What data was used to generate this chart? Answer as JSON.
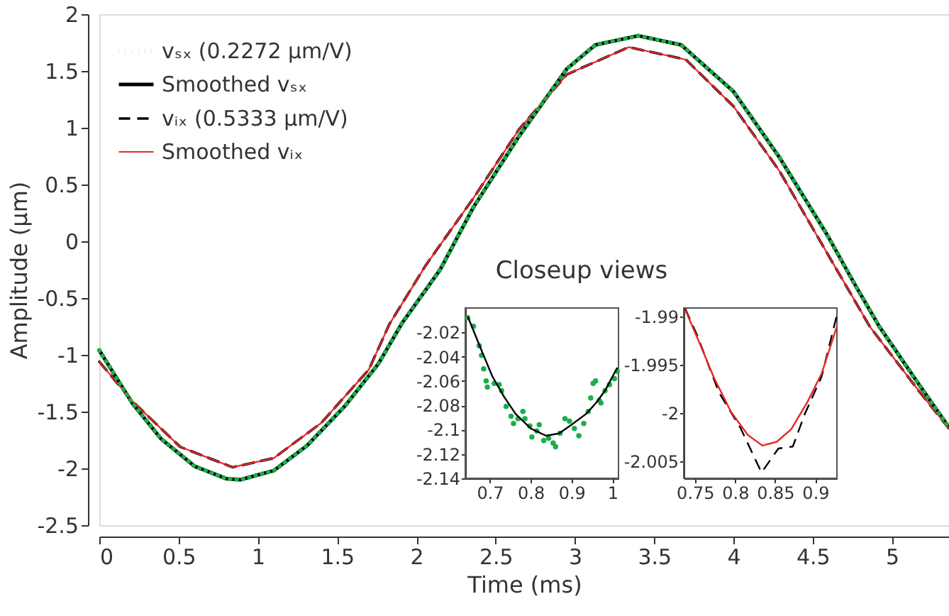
{
  "chart_data": [
    {
      "type": "line",
      "xlabel": "Time (ms)",
      "ylabel": "Amplitude (µm)",
      "xlim": [
        0,
        5.36
      ],
      "ylim": [
        -2.5,
        2
      ],
      "xticks": [
        0,
        0.5,
        1,
        1.5,
        2,
        2.5,
        3,
        3.5,
        4,
        4.5,
        5
      ],
      "yticks": [
        -2.5,
        -2,
        -1.5,
        -1,
        -0.5,
        0,
        0.5,
        1,
        1.5,
        2
      ],
      "grid": false,
      "legend": "top left",
      "annotations": [
        "Closeup views"
      ],
      "series": [
        {
          "name": "vₛₓ (0.2272 µm/V)",
          "color": "#1aae4a",
          "line_style": "dotted",
          "x": [
            0,
            0.21,
            0.39,
            0.6,
            0.8,
            0.89,
            1.1,
            1.31,
            1.55,
            1.76,
            1.91,
            2.15,
            2.36,
            2.65,
            2.95,
            3.13,
            3.4,
            3.67,
            4.0,
            4.29,
            4.59,
            4.77,
            4.92,
            5.16,
            5.36
          ],
          "values": [
            -0.96,
            -1.43,
            -1.74,
            -1.98,
            -2.09,
            -2.1,
            -2.02,
            -1.8,
            -1.45,
            -1.08,
            -0.72,
            -0.25,
            0.3,
            0.93,
            1.52,
            1.73,
            1.81,
            1.73,
            1.32,
            0.74,
            0.06,
            -0.39,
            -0.75,
            -1.24,
            -1.64
          ]
        },
        {
          "name": "Smoothed vₛₓ",
          "color": "#000000",
          "line_style": "solid",
          "x": [
            0,
            0.21,
            0.39,
            0.6,
            0.8,
            0.89,
            1.1,
            1.31,
            1.55,
            1.76,
            1.91,
            2.15,
            2.36,
            2.65,
            2.95,
            3.13,
            3.4,
            3.67,
            4.0,
            4.29,
            4.59,
            4.77,
            4.92,
            5.16,
            5.36
          ],
          "values": [
            -0.96,
            -1.43,
            -1.74,
            -1.98,
            -2.09,
            -2.1,
            -2.02,
            -1.8,
            -1.45,
            -1.08,
            -0.72,
            -0.25,
            0.3,
            0.93,
            1.52,
            1.73,
            1.81,
            1.73,
            1.32,
            0.74,
            0.06,
            -0.39,
            -0.75,
            -1.24,
            -1.64
          ]
        },
        {
          "name": "vᵢₓ (0.5333 µm/V)",
          "color": "#000000",
          "line_style": "dashed",
          "x": [
            0,
            0.21,
            0.51,
            0.84,
            1.1,
            1.4,
            1.7,
            1.83,
            2.06,
            2.36,
            2.65,
            2.95,
            3.34,
            3.7,
            4.0,
            4.29,
            4.71,
            4.86,
            5.16,
            5.36
          ],
          "values": [
            -1.06,
            -1.41,
            -1.81,
            -1.99,
            -1.91,
            -1.6,
            -1.13,
            -0.73,
            -0.21,
            0.38,
            0.99,
            1.47,
            1.71,
            1.6,
            1.19,
            0.62,
            -0.39,
            -0.75,
            -1.3,
            -1.65
          ]
        },
        {
          "name": "Smoothed vᵢₓ",
          "color": "#e8262b",
          "line_style": "solid",
          "x": [
            0,
            0.21,
            0.51,
            0.84,
            1.1,
            1.4,
            1.7,
            1.83,
            2.06,
            2.36,
            2.65,
            2.95,
            3.34,
            3.7,
            4.0,
            4.29,
            4.71,
            4.86,
            5.16,
            5.36
          ],
          "values": [
            -1.06,
            -1.41,
            -1.81,
            -1.99,
            -1.91,
            -1.6,
            -1.13,
            -0.73,
            -0.21,
            0.38,
            0.99,
            1.47,
            1.71,
            1.6,
            1.19,
            0.62,
            -0.39,
            -0.75,
            -1.3,
            -1.65
          ]
        }
      ]
    },
    {
      "type": "line",
      "xlim": [
        0.64,
        1.015
      ],
      "ylim": [
        -2.14,
        -2.0
      ],
      "xticks": [
        0.7,
        0.8,
        0.9,
        1
      ],
      "yticks": [
        -2.14,
        -2.12,
        -2.1,
        -2.08,
        -2.06,
        -2.04,
        -2.02
      ],
      "grid": false,
      "series": [
        {
          "type": "scatter",
          "marker": "circle",
          "color": "#1aae4a",
          "x": [
            0.646,
            0.66,
            0.674,
            0.68,
            0.685,
            0.691,
            0.694,
            0.711,
            0.723,
            0.729,
            0.74,
            0.752,
            0.758,
            0.769,
            0.781,
            0.786,
            0.798,
            0.803,
            0.815,
            0.821,
            0.832,
            0.844,
            0.855,
            0.861,
            0.872,
            0.884,
            0.895,
            0.907,
            0.918,
            0.93,
            0.941,
            0.947,
            0.953,
            0.959,
            0.968,
            0.972,
            0.982,
            0.993,
            1.005,
            1.012
          ],
          "values": [
            -2.008,
            -2.015,
            -2.031,
            -2.039,
            -2.05,
            -2.06,
            -2.065,
            -2.062,
            -2.063,
            -2.068,
            -2.081,
            -2.089,
            -2.095,
            -2.091,
            -2.085,
            -2.091,
            -2.097,
            -2.106,
            -2.101,
            -2.096,
            -2.109,
            -2.107,
            -2.111,
            -2.114,
            -2.103,
            -2.091,
            -2.093,
            -2.099,
            -2.105,
            -2.095,
            -2.085,
            -2.074,
            -2.062,
            -2.06,
            -2.076,
            -2.078,
            -2.068,
            -2.063,
            -2.058,
            -2.052
          ]
        },
        {
          "type": "line",
          "color": "#000000",
          "line_style": "solid",
          "x": [
            0.646,
            0.68,
            0.706,
            0.735,
            0.763,
            0.8,
            0.838,
            0.87,
            0.9,
            0.936,
            0.96,
            0.982,
            1.012
          ],
          "values": [
            -2.007,
            -2.035,
            -2.056,
            -2.073,
            -2.087,
            -2.099,
            -2.105,
            -2.103,
            -2.096,
            -2.087,
            -2.078,
            -2.068,
            -2.049
          ]
        }
      ]
    },
    {
      "type": "line",
      "xlim": [
        0.736,
        0.927
      ],
      "ylim": [
        -2.0068,
        -1.9891
      ],
      "xticks": [
        0.75,
        0.8,
        0.85,
        0.9
      ],
      "yticks": [
        -2.005,
        -2,
        -1.995,
        -1.99
      ],
      "grid": false,
      "series": [
        {
          "color": "#000000",
          "line_style": "dashed",
          "x": [
            0.738,
            0.753,
            0.78,
            0.807,
            0.833,
            0.854,
            0.872,
            0.887,
            0.908,
            0.927
          ],
          "values": [
            -1.9892,
            -1.992,
            -1.9979,
            -2.0016,
            -2.0062,
            -2.0037,
            -2.0035,
            -2.0001,
            -1.9962,
            -1.9898
          ]
        },
        {
          "color": "#e8262b",
          "line_style": "solid",
          "x": [
            0.738,
            0.756,
            0.774,
            0.795,
            0.816,
            0.834,
            0.852,
            0.87,
            0.89,
            0.908,
            0.927
          ],
          "values": [
            -1.9893,
            -1.9928,
            -1.9964,
            -1.9999,
            -2.0023,
            -2.0034,
            -2.003,
            -2.0017,
            -1.9989,
            -1.9959,
            -1.991
          ]
        }
      ]
    }
  ]
}
